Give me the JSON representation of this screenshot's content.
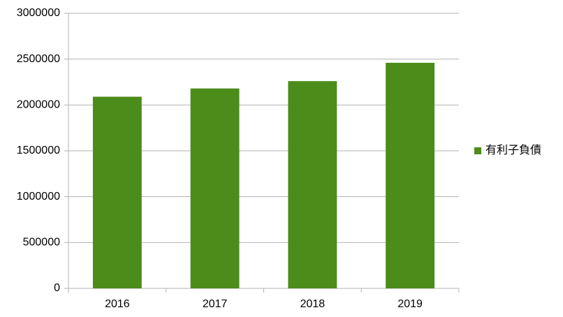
{
  "chart_data": {
    "type": "bar",
    "categories": [
      "2016",
      "2017",
      "2018",
      "2019"
    ],
    "series": [
      {
        "name": "有利子負債",
        "color": "#4c8c1a",
        "values": [
          2090000,
          2180000,
          2260000,
          2460000
        ]
      }
    ],
    "ylim": [
      0,
      3000000
    ],
    "yticks": [
      0,
      500000,
      1000000,
      1500000,
      2000000,
      2500000,
      3000000
    ],
    "grid": true,
    "legend": "right"
  }
}
